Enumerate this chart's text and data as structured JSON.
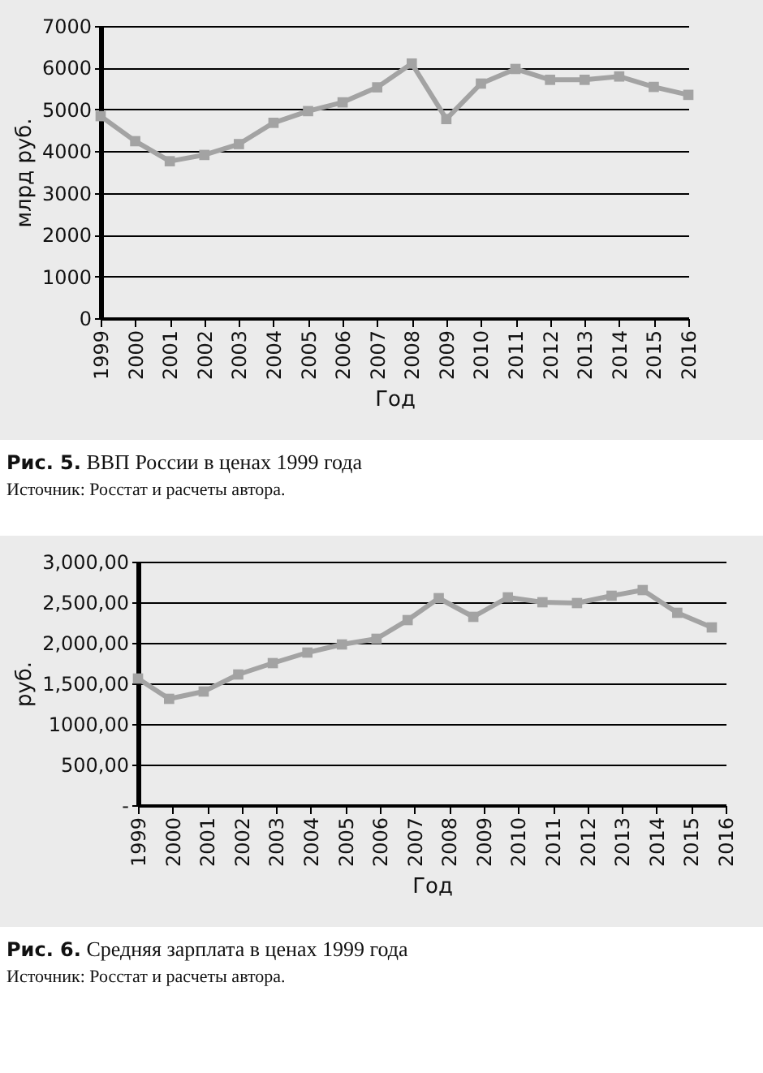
{
  "chart_data": [
    {
      "type": "line",
      "title": "Рис. 5. ВВП России в ценах 1999 года",
      "xlabel": "Год",
      "ylabel": "млрд руб.",
      "x": [
        1999,
        2000,
        2001,
        2002,
        2003,
        2004,
        2005,
        2006,
        2007,
        2008,
        2009,
        2010,
        2011,
        2012,
        2013,
        2014,
        2015,
        2016
      ],
      "series": [
        {
          "color": "#a3a3a3",
          "values": [
            4840,
            4240,
            3760,
            3910,
            4170,
            4680,
            4960,
            5170,
            5530,
            6100,
            4770,
            5620,
            5970,
            5710,
            5710,
            5790,
            5540,
            5350
          ]
        }
      ],
      "xlim": [
        1999,
        2016
      ],
      "xticks": [
        1999,
        2000,
        2001,
        2002,
        2003,
        2004,
        2005,
        2006,
        2007,
        2008,
        2009,
        2010,
        2011,
        2012,
        2013,
        2014,
        2015,
        2016
      ],
      "ylim": [
        0,
        7000
      ],
      "yticks": [
        0,
        1000,
        2000,
        3000,
        4000,
        5000,
        6000,
        7000
      ],
      "grid": "y",
      "marker": "square",
      "line_style": "solid",
      "annotations": [
        "Источник: Росстат и расчеты автора."
      ]
    },
    {
      "type": "line",
      "title": "Рис. 6. Средняя зарплата в ценах 1999 года",
      "xlabel": "Год",
      "ylabel": "руб.",
      "x": [
        1999,
        1999.9,
        2000.9,
        2001.9,
        2002.9,
        2003.9,
        2004.9,
        2005.9,
        2006.8,
        2007.7,
        2008.7,
        2009.7,
        2010.7,
        2011.7,
        2012.7,
        2013.6,
        2014.6,
        2015.6
      ],
      "series": [
        {
          "color": "#a3a3a3",
          "values": [
            1560,
            1310,
            1400,
            1610,
            1750,
            1880,
            1980,
            2050,
            2280,
            2550,
            2320,
            2560,
            2500,
            2490,
            2580,
            2650,
            2370,
            2190
          ]
        }
      ],
      "xlim": [
        1999,
        2016
      ],
      "xticks": [
        1999,
        2000,
        2001,
        2002,
        2003,
        2004,
        2005,
        2006,
        2007,
        2008,
        2009,
        2010,
        2011,
        2012,
        2013,
        2014,
        2015,
        2016
      ],
      "ylim": [
        0,
        3000
      ],
      "yticks": [
        {
          "value": 0,
          "label": "-"
        },
        {
          "value": 500,
          "label": "500,00"
        },
        {
          "value": 1000,
          "label": "1000,00"
        },
        {
          "value": 1500,
          "label": "1,500,00"
        },
        {
          "value": 2000,
          "label": "2,000,00"
        },
        {
          "value": 2500,
          "label": "2,500,00"
        },
        {
          "value": 3000,
          "label": "3,000,00"
        }
      ],
      "grid": "y",
      "marker": "square",
      "line_style": "solid",
      "annotations": [
        "Источник: Росстат и расчеты автора."
      ]
    }
  ]
}
